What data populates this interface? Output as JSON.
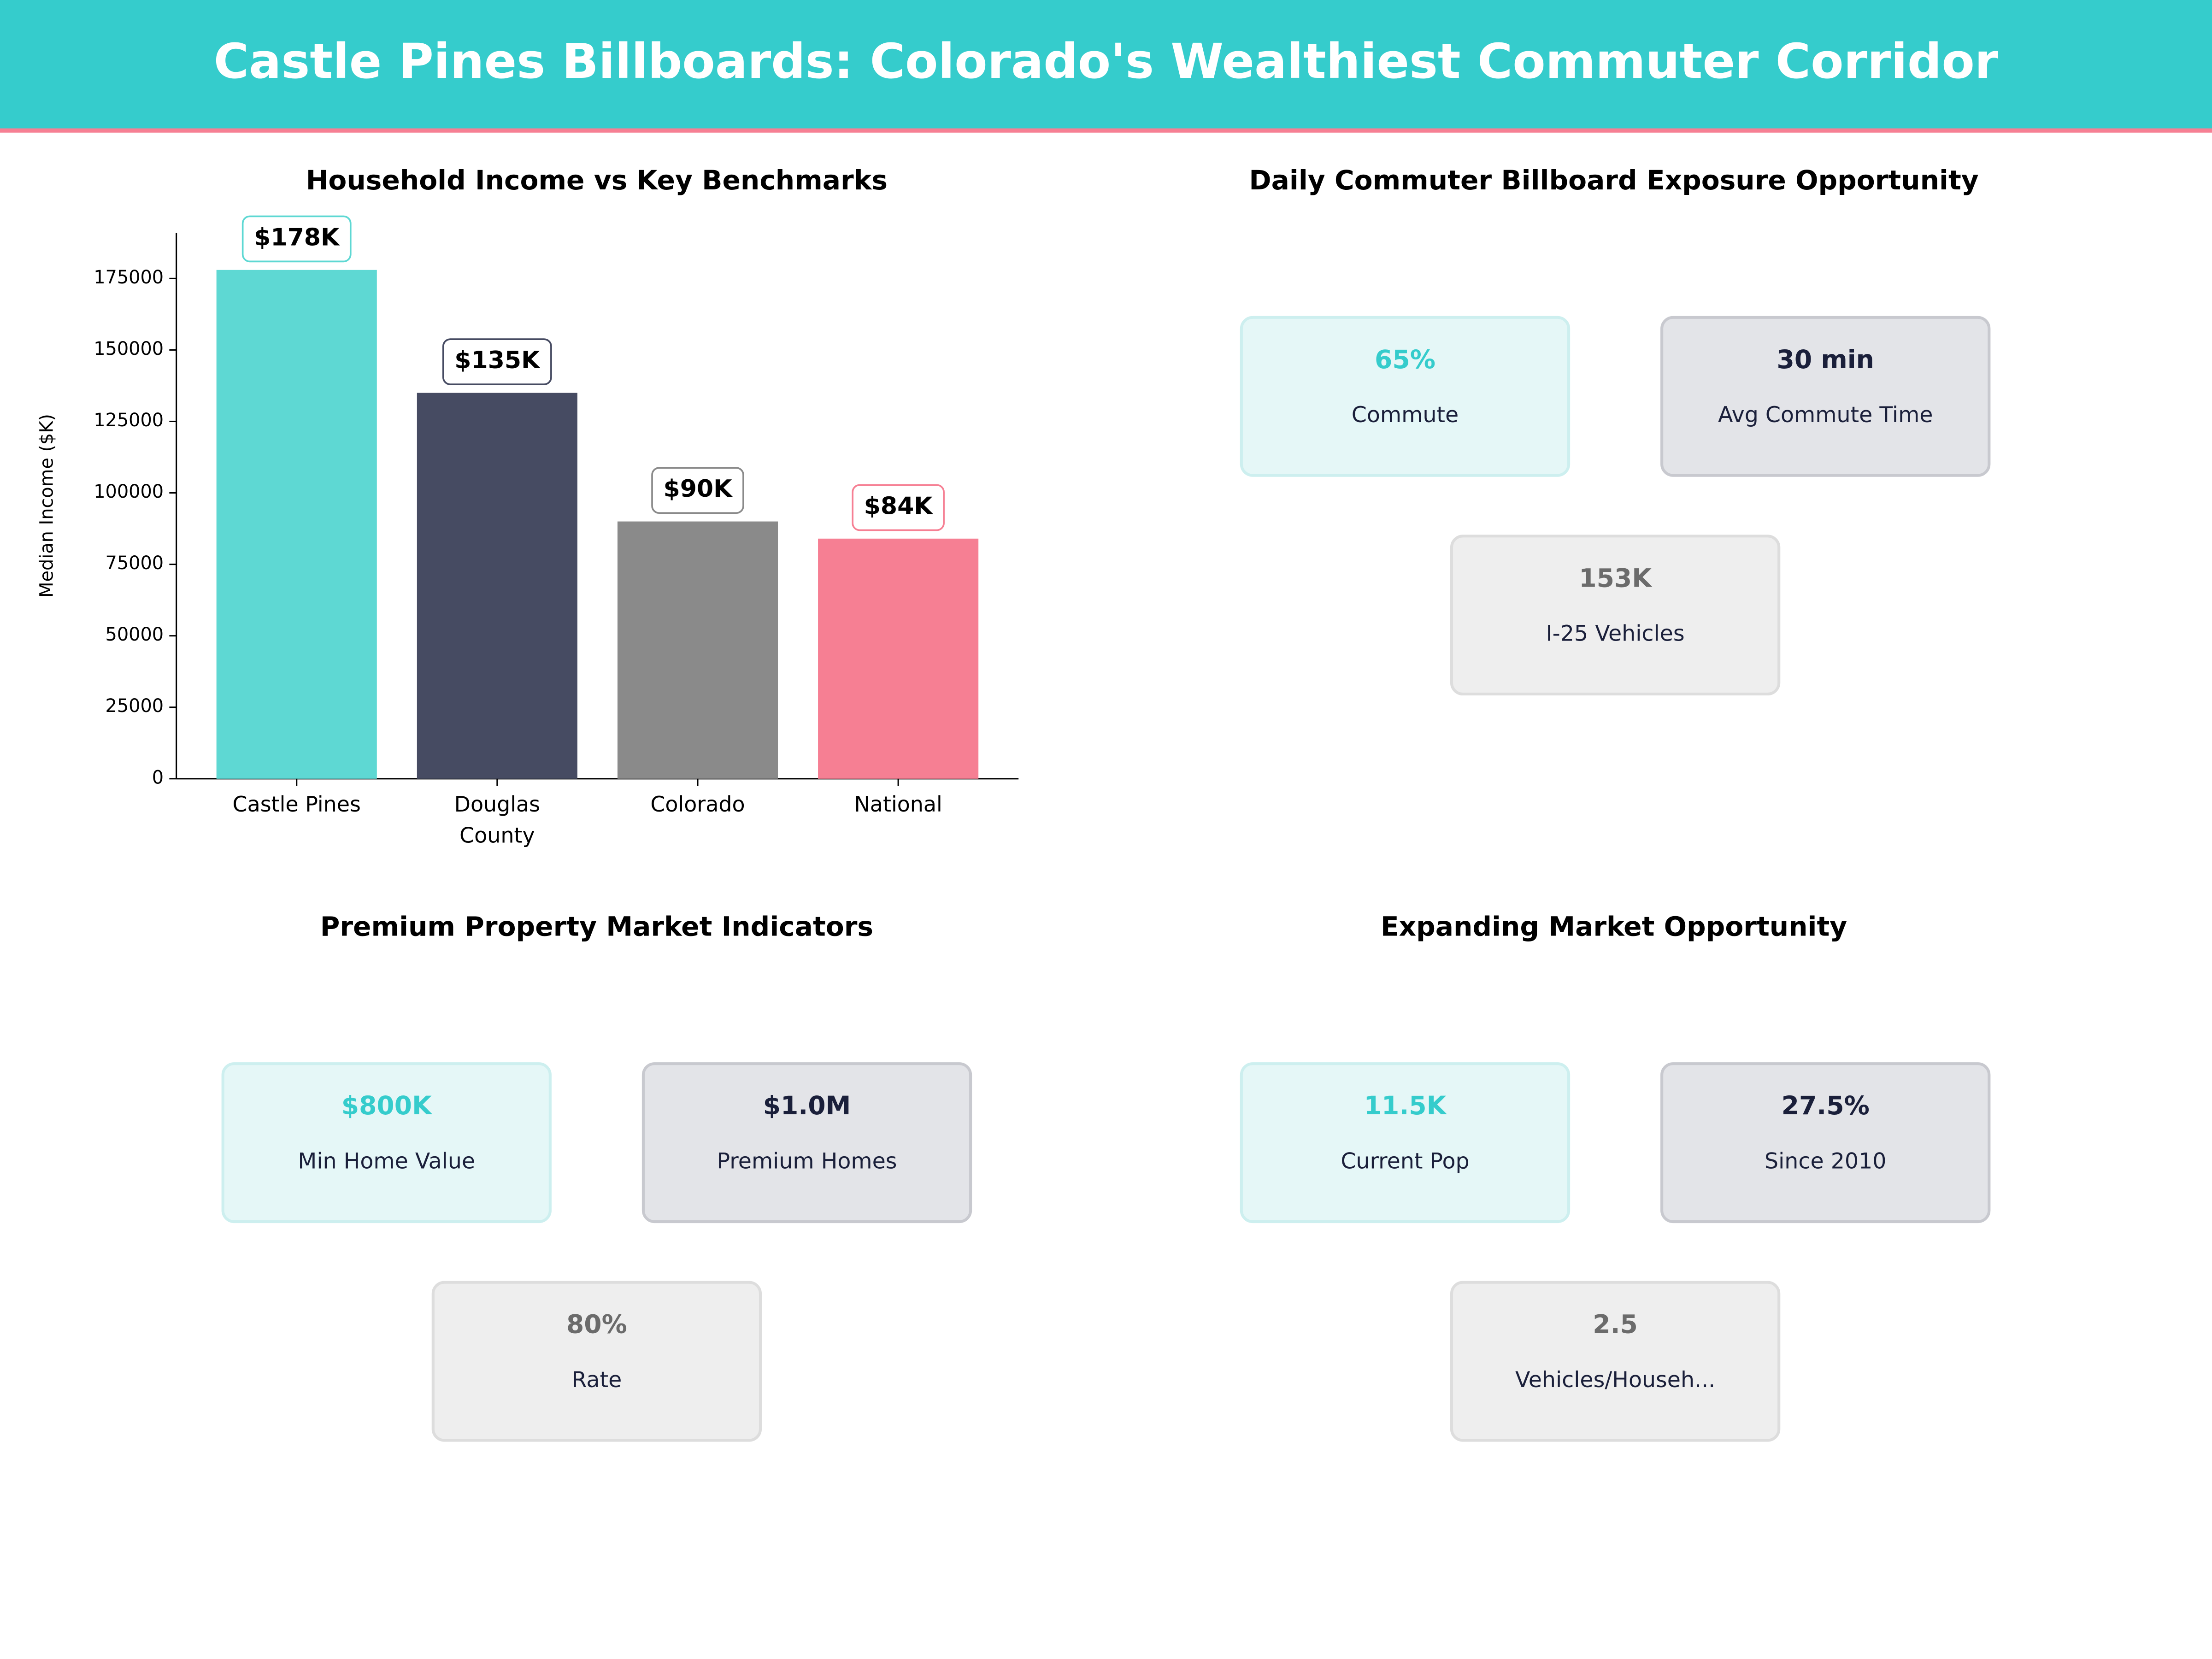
{
  "header": {
    "title": "Castle Pines Billboards: Colorado's Wealthiest Commuter Corridor"
  },
  "chart_data": [
    {
      "type": "bar",
      "title": "Household Income vs Key Benchmarks",
      "ylabel": "Median Income ($K)",
      "categories": [
        "Castle Pines",
        "Douglas\nCounty",
        "Colorado",
        "National"
      ],
      "values": [
        178000,
        135000,
        90000,
        84000
      ],
      "value_labels": [
        "$178K",
        "$135K",
        "$90K",
        "$84K"
      ],
      "colors": [
        "#5ED8D3",
        "#464B62",
        "#8A8A8A",
        "#F67F93"
      ],
      "ylim": [
        0,
        191000
      ],
      "yticks": [
        0,
        25000,
        50000,
        75000,
        100000,
        125000,
        150000,
        175000
      ]
    },
    {
      "type": "kpi",
      "title": "Daily Commuter Billboard Exposure Opportunity",
      "cards": [
        {
          "value": "65%",
          "label": "Commute"
        },
        {
          "value": "30 min",
          "label": "Avg Commute Time"
        },
        {
          "value": "153K",
          "label": "I-25 Vehicles"
        }
      ]
    },
    {
      "type": "kpi",
      "title": "Premium Property Market Indicators",
      "cards": [
        {
          "value": "$800K",
          "label": "Min Home Value"
        },
        {
          "value": "$1.0M",
          "label": "Premium Homes"
        },
        {
          "value": "80%",
          "label": "Rate"
        }
      ]
    },
    {
      "type": "kpi",
      "title": "Expanding Market Opportunity",
      "cards": [
        {
          "value": "11.5K",
          "label": "Current Pop"
        },
        {
          "value": "27.5%",
          "label": "Since 2010"
        },
        {
          "value": "2.5",
          "label": "Vehicles/Househ..."
        }
      ]
    }
  ]
}
